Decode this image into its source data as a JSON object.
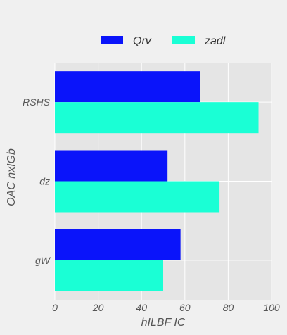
{
  "chart_data": {
    "type": "bar",
    "orientation": "horizontal",
    "categories": [
      "RSHS",
      "dz",
      "gW"
    ],
    "series": [
      {
        "name": "Qrv",
        "values": [
          67,
          52,
          58
        ],
        "color": "#0a14fa"
      },
      {
        "name": "zadl",
        "values": [
          94,
          76,
          50
        ],
        "color": "#1affd5"
      }
    ],
    "xlabel": "hILBF IC",
    "ylabel": "OAC nxIGb",
    "xlim": [
      0,
      100
    ],
    "xticks": [
      0,
      20,
      40,
      60,
      80,
      100
    ],
    "grid": true,
    "legend_position": "top-center",
    "background_color": "#f0f0f0",
    "plot_background_color": "#e5e5e5",
    "grid_color": "#ffffff"
  }
}
